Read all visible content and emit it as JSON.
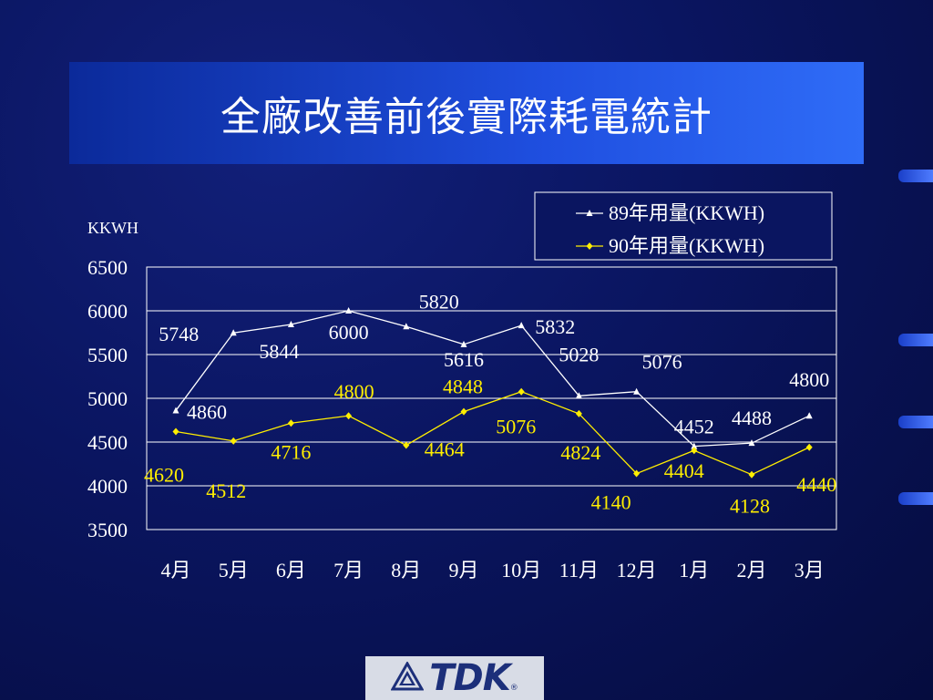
{
  "slide": {
    "title": "全廠改善前後實際耗電統計",
    "logo_text": "TDK"
  },
  "colors": {
    "series1": "#ffffff",
    "series2": "#ffee00",
    "grid": "#ffffff",
    "plot_bg": "#0a1560"
  },
  "chart_data": {
    "type": "line",
    "title": "",
    "ylabel": "KKWH",
    "xlabel": "",
    "categories": [
      "4月",
      "5月",
      "6月",
      "7月",
      "8月",
      "9月",
      "10月",
      "11月",
      "12月",
      "1月",
      "2月",
      "3月"
    ],
    "ylim": [
      3500,
      6500
    ],
    "yticks": [
      "3500",
      "4000",
      "4500",
      "5000",
      "5500",
      "6000",
      "6500"
    ],
    "grid": true,
    "legend_position": "top-right",
    "series": [
      {
        "name": "89年用量(KKWH)",
        "marker": "triangle",
        "values": [
          4860,
          5748,
          5844,
          6000,
          5820,
          5616,
          5832,
          5028,
          5076,
          4452,
          4488,
          4800
        ]
      },
      {
        "name": "90年用量(KKWH)",
        "marker": "diamond",
        "values": [
          4620,
          4512,
          4716,
          4800,
          4464,
          4848,
          5076,
          4824,
          4140,
          4404,
          4128,
          4440
        ]
      }
    ]
  }
}
